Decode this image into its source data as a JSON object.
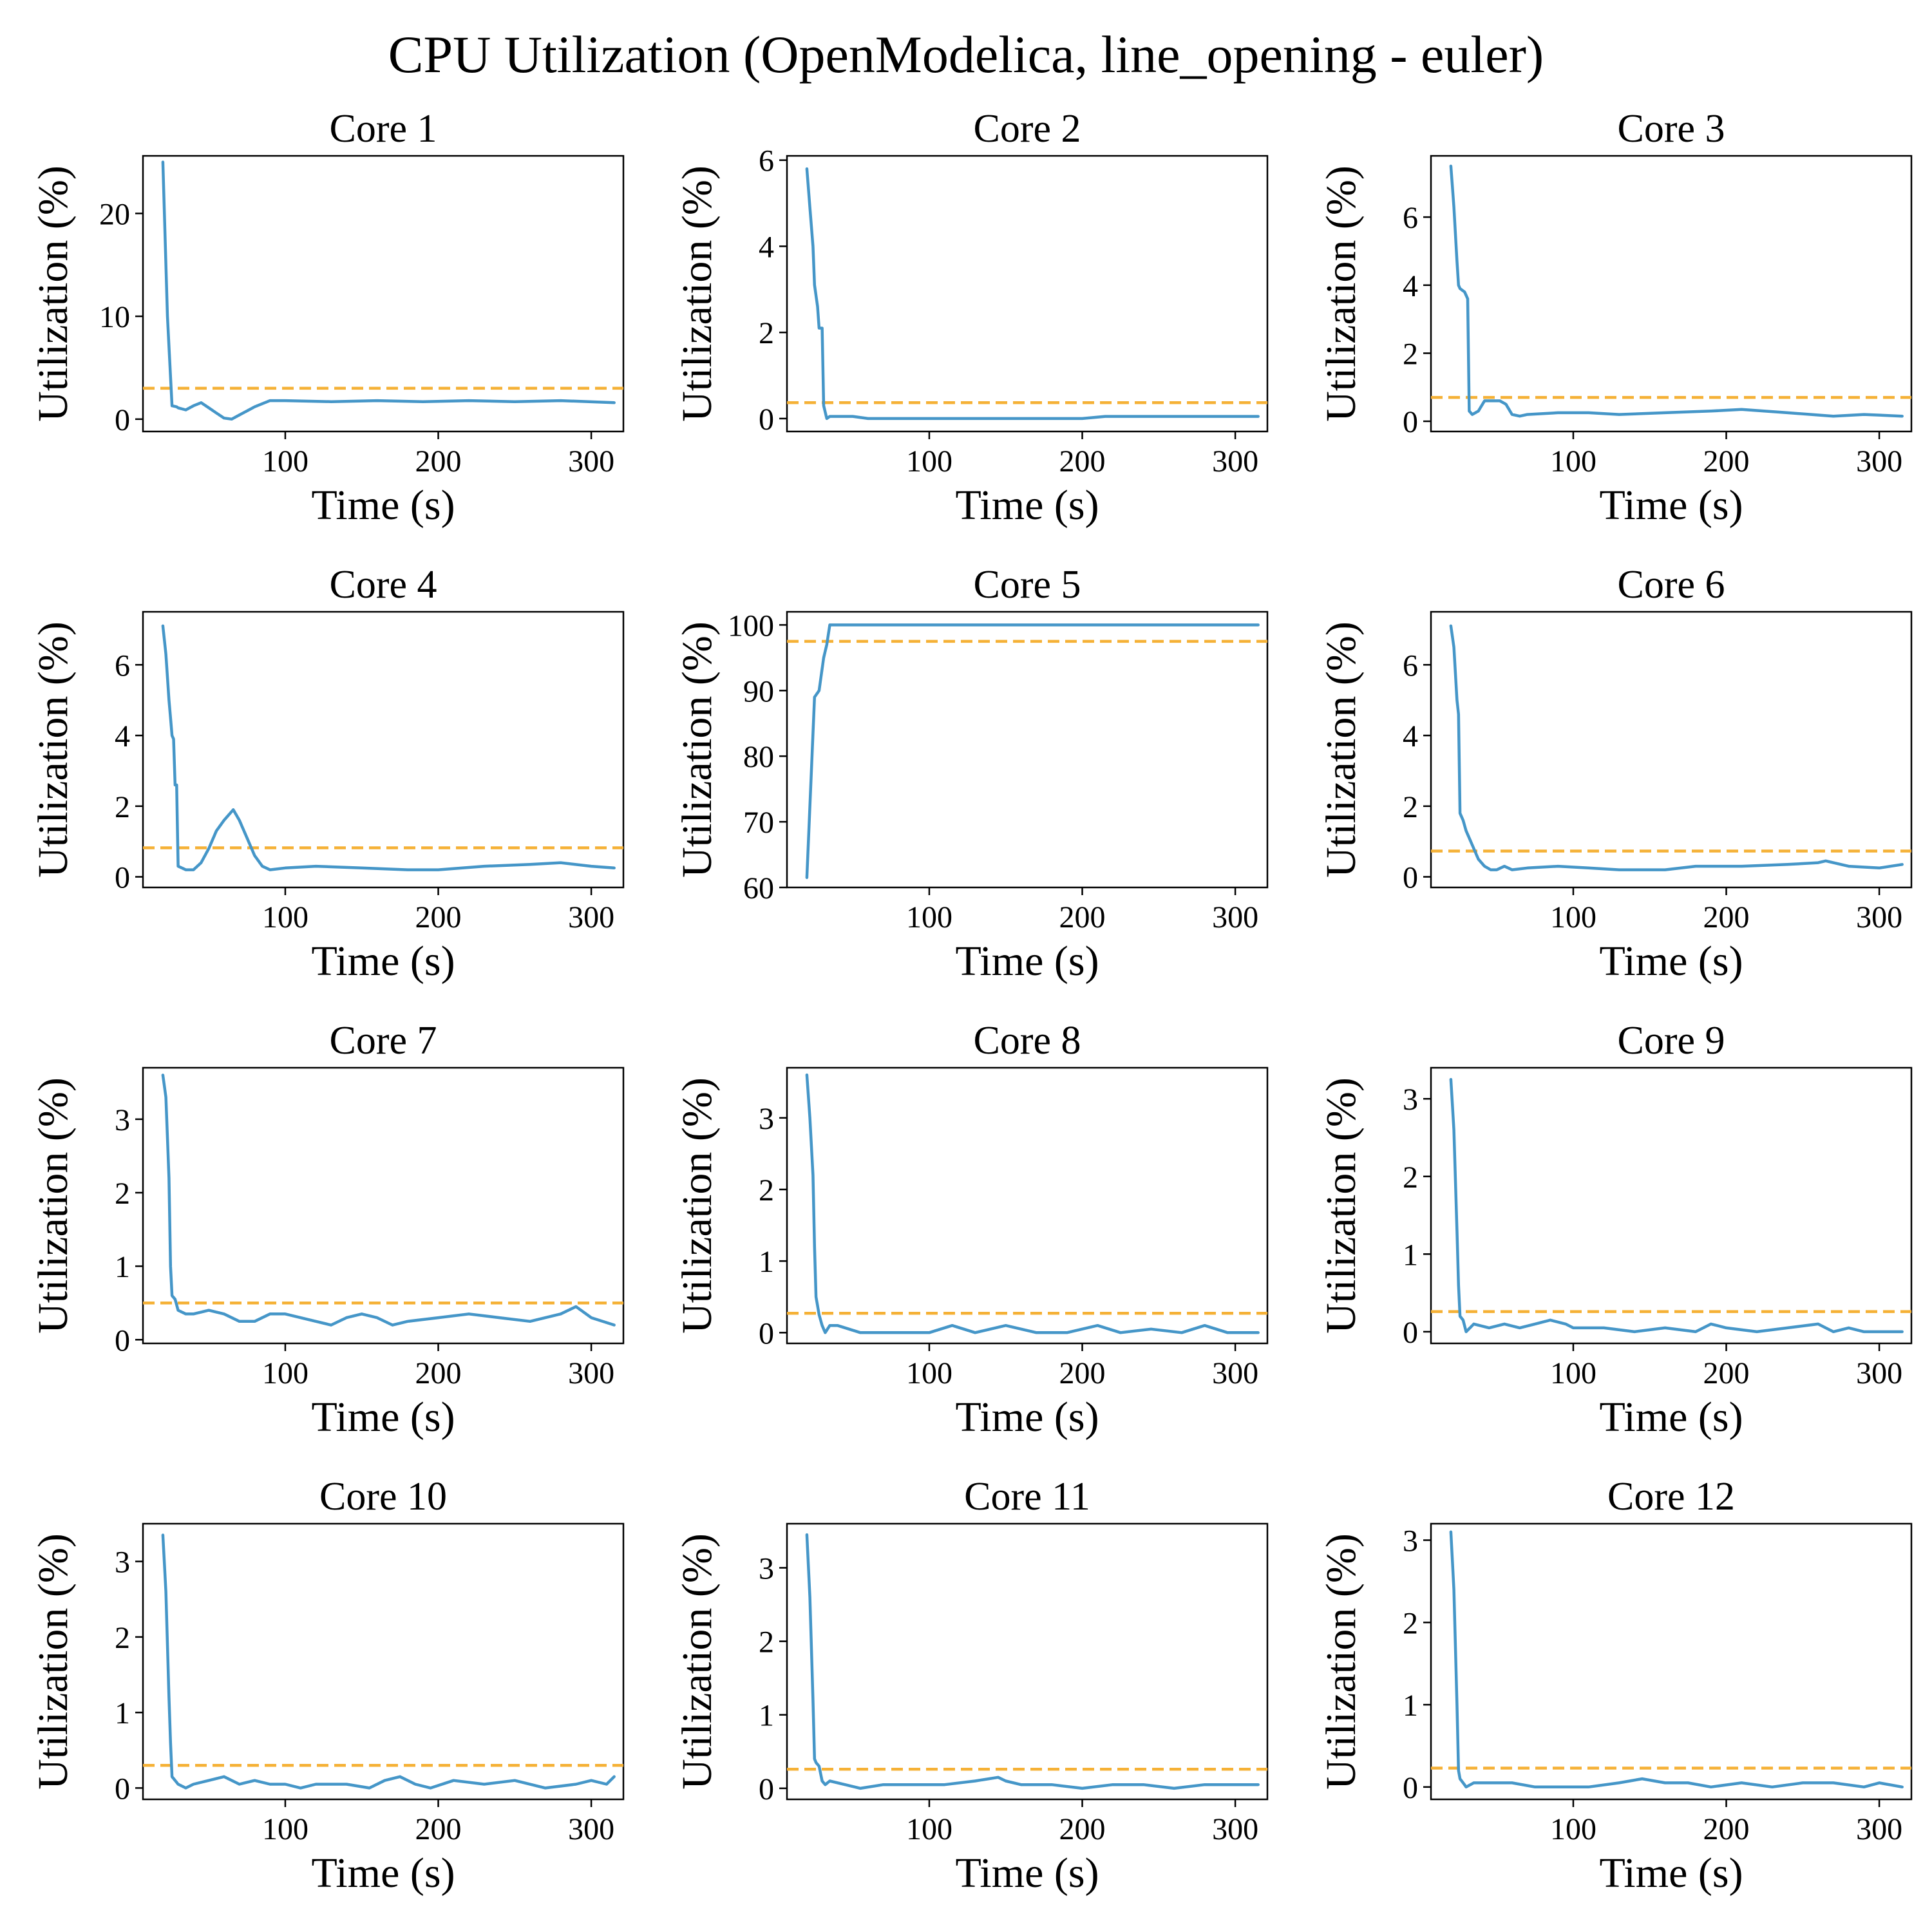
{
  "figure": {
    "title": "CPU Utilization (OpenModelica, line_opening - euler)"
  },
  "colors": {
    "series": "#4596c8",
    "mean": "#f5b136",
    "axes": "#000000",
    "background": "#ffffff"
  },
  "chart_data": [
    {
      "type": "line",
      "title": "Core 1",
      "xlabel": "Time (s)",
      "ylabel": "Utilization (%)",
      "xlim": [
        7,
        321
      ],
      "ylim": [
        -1.2,
        25.6
      ],
      "xticks": [
        100,
        200,
        300
      ],
      "yticks": [
        0,
        10,
        20
      ],
      "mean_line": 3.0,
      "series": [
        {
          "x": [
            20,
            23,
            26,
            29,
            30,
            35,
            40,
            45,
            50,
            55,
            60,
            65,
            70,
            80,
            90,
            100,
            130,
            160,
            190,
            220,
            250,
            280,
            315
          ],
          "y": [
            25.0,
            10.0,
            1.3,
            1.2,
            1.1,
            0.9,
            1.3,
            1.6,
            1.1,
            0.6,
            0.1,
            0.0,
            0.4,
            1.2,
            1.8,
            1.8,
            1.7,
            1.8,
            1.7,
            1.8,
            1.7,
            1.8,
            1.6
          ]
        }
      ]
    },
    {
      "type": "line",
      "title": "Core 2",
      "xlabel": "Time (s)",
      "ylabel": "Utilization (%)",
      "xlim": [
        7,
        321
      ],
      "ylim": [
        -0.3,
        6.1
      ],
      "xticks": [
        100,
        200,
        300
      ],
      "yticks": [
        0,
        2,
        4,
        6
      ],
      "mean_line": 0.37,
      "series": [
        {
          "x": [
            20,
            22,
            24,
            25,
            27,
            28,
            30,
            31,
            33,
            35,
            40,
            50,
            60,
            100,
            200,
            215,
            245,
            275,
            315
          ],
          "y": [
            5.8,
            4.9,
            4.0,
            3.1,
            2.6,
            2.1,
            2.1,
            0.3,
            0.0,
            0.05,
            0.05,
            0.05,
            0.0,
            0.0,
            0.0,
            0.05,
            0.05,
            0.05,
            0.05
          ]
        }
      ]
    },
    {
      "type": "line",
      "title": "Core 3",
      "xlabel": "Time (s)",
      "ylabel": "Utilization (%)",
      "xlim": [
        7,
        321
      ],
      "ylim": [
        -0.3,
        7.8
      ],
      "xticks": [
        100,
        200,
        300
      ],
      "yticks": [
        0,
        2,
        4,
        6
      ],
      "mean_line": 0.7,
      "series": [
        {
          "x": [
            20,
            22,
            24,
            25,
            26,
            29,
            31,
            32,
            34,
            38,
            42,
            46,
            52,
            56,
            60,
            65,
            70,
            90,
            110,
            130,
            160,
            190,
            210,
            240,
            270,
            290,
            315
          ],
          "y": [
            7.5,
            6.3,
            4.7,
            4.0,
            3.9,
            3.8,
            3.6,
            0.3,
            0.2,
            0.3,
            0.6,
            0.6,
            0.6,
            0.5,
            0.2,
            0.15,
            0.2,
            0.25,
            0.25,
            0.2,
            0.25,
            0.3,
            0.35,
            0.25,
            0.15,
            0.2,
            0.15
          ]
        }
      ]
    },
    {
      "type": "line",
      "title": "Core 4",
      "xlabel": "Time (s)",
      "ylabel": "Utilization (%)",
      "xlim": [
        7,
        321
      ],
      "ylim": [
        -0.3,
        7.5
      ],
      "xticks": [
        100,
        200,
        300
      ],
      "yticks": [
        0,
        2,
        4,
        6
      ],
      "mean_line": 0.82,
      "series": [
        {
          "x": [
            20,
            22,
            24,
            25,
            26,
            27,
            28,
            29,
            30,
            35,
            40,
            45,
            50,
            55,
            60,
            66,
            70,
            75,
            80,
            85,
            90,
            100,
            120,
            150,
            180,
            200,
            230,
            260,
            280,
            300,
            315
          ],
          "y": [
            7.1,
            6.3,
            5.0,
            4.5,
            4.0,
            3.9,
            2.6,
            2.6,
            0.3,
            0.2,
            0.2,
            0.4,
            0.8,
            1.3,
            1.6,
            1.9,
            1.6,
            1.1,
            0.6,
            0.3,
            0.2,
            0.25,
            0.3,
            0.25,
            0.2,
            0.2,
            0.3,
            0.35,
            0.4,
            0.3,
            0.25
          ]
        }
      ]
    },
    {
      "type": "line",
      "title": "Core 5",
      "xlabel": "Time (s)",
      "ylabel": "Utilization (%)",
      "xlim": [
        7,
        321
      ],
      "ylim": [
        60,
        102
      ],
      "xticks": [
        100,
        200,
        300
      ],
      "yticks": [
        60,
        70,
        80,
        90,
        100
      ],
      "mean_line": 97.5,
      "series": [
        {
          "x": [
            20,
            25,
            28,
            31,
            33,
            35,
            40,
            100,
            200,
            315
          ],
          "y": [
            61.5,
            89.0,
            90.0,
            95.0,
            97.0,
            100.0,
            100.0,
            100.0,
            100.0,
            100.0
          ]
        }
      ]
    },
    {
      "type": "line",
      "title": "Core 6",
      "xlabel": "Time (s)",
      "ylabel": "Utilization (%)",
      "xlim": [
        7,
        321
      ],
      "ylim": [
        -0.3,
        7.5
      ],
      "xticks": [
        100,
        200,
        300
      ],
      "yticks": [
        0,
        2,
        4,
        6
      ],
      "mean_line": 0.73,
      "series": [
        {
          "x": [
            20,
            22,
            24,
            25,
            26,
            27,
            28,
            30,
            32,
            35,
            38,
            42,
            46,
            50,
            55,
            60,
            70,
            90,
            110,
            130,
            160,
            180,
            210,
            240,
            260,
            265,
            280,
            300,
            315
          ],
          "y": [
            7.1,
            6.5,
            5.0,
            4.6,
            1.8,
            1.7,
            1.6,
            1.3,
            1.1,
            0.8,
            0.5,
            0.3,
            0.2,
            0.2,
            0.3,
            0.2,
            0.25,
            0.3,
            0.25,
            0.2,
            0.2,
            0.3,
            0.3,
            0.35,
            0.4,
            0.45,
            0.3,
            0.25,
            0.35
          ]
        }
      ]
    },
    {
      "type": "line",
      "title": "Core 7",
      "xlabel": "Time (s)",
      "ylabel": "Utilization (%)",
      "xlim": [
        7,
        321
      ],
      "ylim": [
        -0.05,
        3.7
      ],
      "xticks": [
        100,
        200,
        300
      ],
      "yticks": [
        0,
        1,
        2,
        3
      ],
      "mean_line": 0.5,
      "series": [
        {
          "x": [
            20,
            22,
            24,
            25,
            26,
            28,
            30,
            35,
            40,
            50,
            60,
            70,
            80,
            90,
            100,
            110,
            120,
            130,
            140,
            150,
            160,
            170,
            180,
            200,
            220,
            240,
            260,
            280,
            290,
            300,
            315
          ],
          "y": [
            3.6,
            3.3,
            2.2,
            1.0,
            0.6,
            0.55,
            0.4,
            0.35,
            0.35,
            0.4,
            0.35,
            0.25,
            0.25,
            0.35,
            0.35,
            0.3,
            0.25,
            0.2,
            0.3,
            0.35,
            0.3,
            0.2,
            0.25,
            0.3,
            0.35,
            0.3,
            0.25,
            0.35,
            0.45,
            0.3,
            0.2
          ]
        }
      ]
    },
    {
      "type": "line",
      "title": "Core 8",
      "xlabel": "Time (s)",
      "ylabel": "Utilization (%)",
      "xlim": [
        7,
        321
      ],
      "ylim": [
        -0.15,
        3.7
      ],
      "xticks": [
        100,
        200,
        300
      ],
      "yticks": [
        0,
        1,
        2,
        3
      ],
      "mean_line": 0.27,
      "series": [
        {
          "x": [
            20,
            22,
            24,
            25,
            26,
            28,
            30,
            32,
            35,
            40,
            55,
            60,
            100,
            115,
            130,
            150,
            170,
            190,
            210,
            225,
            245,
            265,
            280,
            295,
            315
          ],
          "y": [
            3.6,
            3.0,
            2.2,
            1.2,
            0.5,
            0.25,
            0.1,
            0.0,
            0.1,
            0.1,
            0.0,
            0.0,
            0.0,
            0.1,
            0.0,
            0.1,
            0.0,
            0.0,
            0.1,
            0.0,
            0.05,
            0.0,
            0.1,
            0.0,
            0.0
          ]
        }
      ]
    },
    {
      "type": "line",
      "title": "Core 9",
      "xlabel": "Time (s)",
      "ylabel": "Utilization (%)",
      "xlim": [
        7,
        321
      ],
      "ylim": [
        -0.15,
        3.4
      ],
      "xticks": [
        100,
        200,
        300
      ],
      "yticks": [
        0,
        1,
        2,
        3
      ],
      "mean_line": 0.26,
      "series": [
        {
          "x": [
            20,
            22,
            24,
            25,
            26,
            28,
            30,
            35,
            45,
            55,
            65,
            75,
            85,
            95,
            100,
            120,
            140,
            160,
            180,
            190,
            200,
            220,
            240,
            260,
            270,
            280,
            290,
            300,
            315
          ],
          "y": [
            3.25,
            2.6,
            1.3,
            0.6,
            0.2,
            0.15,
            0.0,
            0.1,
            0.05,
            0.1,
            0.05,
            0.1,
            0.15,
            0.1,
            0.05,
            0.05,
            0.0,
            0.05,
            0.0,
            0.1,
            0.05,
            0.0,
            0.05,
            0.1,
            0.0,
            0.05,
            0.0,
            0.0,
            0.0
          ]
        }
      ]
    },
    {
      "type": "line",
      "title": "Core 10",
      "xlabel": "Time (s)",
      "ylabel": "Utilization (%)",
      "xlim": [
        7,
        321
      ],
      "ylim": [
        -0.15,
        3.5
      ],
      "xticks": [
        100,
        200,
        300
      ],
      "yticks": [
        0,
        1,
        2,
        3
      ],
      "mean_line": 0.3,
      "series": [
        {
          "x": [
            20,
            22,
            24,
            25,
            26,
            28,
            30,
            35,
            40,
            50,
            60,
            70,
            80,
            90,
            100,
            110,
            120,
            140,
            155,
            165,
            175,
            185,
            195,
            210,
            230,
            250,
            270,
            290,
            300,
            310,
            315
          ],
          "y": [
            3.35,
            2.6,
            1.2,
            0.6,
            0.15,
            0.1,
            0.05,
            0.0,
            0.05,
            0.1,
            0.15,
            0.05,
            0.1,
            0.05,
            0.05,
            0.0,
            0.05,
            0.05,
            0.0,
            0.1,
            0.15,
            0.05,
            0.0,
            0.1,
            0.05,
            0.1,
            0.0,
            0.05,
            0.1,
            0.05,
            0.15
          ]
        }
      ]
    },
    {
      "type": "line",
      "title": "Core 11",
      "xlabel": "Time (s)",
      "ylabel": "Utilization (%)",
      "xlim": [
        7,
        321
      ],
      "ylim": [
        -0.15,
        3.6
      ],
      "xticks": [
        100,
        200,
        300
      ],
      "yticks": [
        0,
        1,
        2,
        3
      ],
      "mean_line": 0.26,
      "series": [
        {
          "x": [
            20,
            22,
            24,
            25,
            26,
            28,
            30,
            32,
            35,
            45,
            55,
            70,
            90,
            110,
            130,
            145,
            150,
            160,
            180,
            200,
            220,
            240,
            260,
            280,
            300,
            315
          ],
          "y": [
            3.45,
            2.6,
            1.2,
            0.4,
            0.35,
            0.3,
            0.1,
            0.05,
            0.1,
            0.05,
            0.0,
            0.05,
            0.05,
            0.05,
            0.1,
            0.15,
            0.1,
            0.05,
            0.05,
            0.0,
            0.05,
            0.05,
            0.0,
            0.05,
            0.05,
            0.05
          ]
        }
      ]
    },
    {
      "type": "line",
      "title": "Core 12",
      "xlabel": "Time (s)",
      "ylabel": "Utilization (%)",
      "xlim": [
        7,
        321
      ],
      "ylim": [
        -0.15,
        3.2
      ],
      "xticks": [
        100,
        200,
        300
      ],
      "yticks": [
        0,
        1,
        2,
        3
      ],
      "mean_line": 0.23,
      "series": [
        {
          "x": [
            20,
            22,
            24,
            25,
            26,
            28,
            30,
            35,
            45,
            60,
            75,
            90,
            110,
            130,
            145,
            160,
            175,
            190,
            210,
            230,
            250,
            270,
            290,
            300,
            315
          ],
          "y": [
            3.1,
            2.4,
            1.0,
            0.2,
            0.1,
            0.05,
            0.0,
            0.05,
            0.05,
            0.05,
            0.0,
            0.0,
            0.0,
            0.05,
            0.1,
            0.05,
            0.05,
            0.0,
            0.05,
            0.0,
            0.05,
            0.05,
            0.0,
            0.05,
            0.0
          ]
        }
      ]
    }
  ]
}
